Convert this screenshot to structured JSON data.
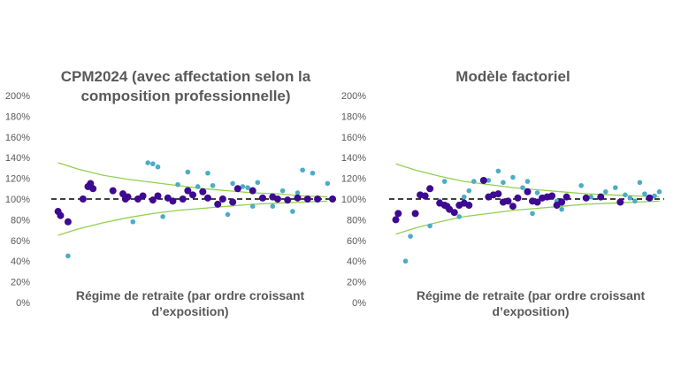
{
  "chart_data": [
    {
      "type": "scatter",
      "title": "CPM2024 (avec affectation selon la composition professionnelle)",
      "xlabel": "Régime de retraite (par ordre croissant d’exposition)",
      "ylabel": "",
      "xlim": [
        0,
        56
      ],
      "ylim": [
        0,
        2.0
      ],
      "yticks": [
        "0%",
        "20%",
        "40%",
        "60%",
        "80%",
        "100%",
        "120%",
        "140%",
        "160%",
        "180%",
        "200%"
      ],
      "reference_line": 1.0,
      "grid": false,
      "colors": {
        "series_a": "#4bacc6",
        "series_b": "#3d0a91",
        "bounds": "#92d050",
        "reference": "#000000"
      },
      "bounds": {
        "x": [
          1,
          5,
          10,
          15,
          20,
          25,
          30,
          35,
          40,
          45,
          50,
          55
        ],
        "upper": [
          1.35,
          1.29,
          1.23,
          1.19,
          1.16,
          1.13,
          1.1,
          1.08,
          1.06,
          1.05,
          1.03,
          1.02
        ],
        "lower": [
          0.65,
          0.71,
          0.77,
          0.82,
          0.86,
          0.89,
          0.91,
          0.93,
          0.95,
          0.96,
          0.97,
          0.98
        ]
      },
      "series": [
        {
          "x": [
            3,
            16,
            19,
            20,
            21,
            22,
            25,
            27,
            29,
            31,
            32,
            35,
            36,
            38,
            39,
            40,
            41,
            44,
            46,
            48,
            49,
            50,
            52,
            55
          ],
          "y": [
            0.45,
            0.78,
            1.35,
            1.34,
            1.31,
            0.83,
            1.14,
            1.26,
            1.12,
            1.25,
            1.13,
            0.85,
            1.15,
            1.12,
            1.11,
            0.93,
            1.16,
            0.93,
            1.08,
            0.88,
            1.06,
            1.28,
            1.25,
            1.15
          ]
        },
        {
          "x": [
            1,
            1.5,
            3,
            6,
            7,
            7.5,
            8,
            12,
            14,
            14.5,
            15,
            17,
            18,
            20,
            21,
            23,
            24,
            26,
            27,
            28,
            30,
            31,
            33,
            34,
            36,
            37,
            40,
            42,
            44,
            45,
            47,
            49,
            51,
            53,
            56
          ],
          "y": [
            0.88,
            0.84,
            0.78,
            1.0,
            1.12,
            1.15,
            1.1,
            1.08,
            1.05,
            1.0,
            1.02,
            1.0,
            1.03,
            0.99,
            1.03,
            1.01,
            0.98,
            1.0,
            1.08,
            1.04,
            1.07,
            1.01,
            0.95,
            1.0,
            0.97,
            1.1,
            1.08,
            1.01,
            1.02,
            1.0,
            0.99,
            1.01,
            1.0,
            1.0,
            1.0
          ]
        }
      ]
    },
    {
      "type": "scatter",
      "title": "Modèle factoriel",
      "xlabel": "Régime de retraite (par ordre croissant d’exposition)",
      "ylabel": "",
      "xlim": [
        0,
        56
      ],
      "ylim": [
        0,
        2.0
      ],
      "yticks": [
        "0%",
        "20%",
        "40%",
        "60%",
        "80%",
        "100%",
        "120%",
        "140%",
        "160%",
        "180%",
        "200%"
      ],
      "reference_line": 1.0,
      "grid": false,
      "colors": {
        "series_a": "#4bacc6",
        "series_b": "#3d0a91",
        "bounds": "#92d050",
        "reference": "#000000"
      },
      "bounds": {
        "x": [
          1,
          5,
          10,
          15,
          20,
          25,
          30,
          35,
          40,
          45,
          50,
          55
        ],
        "upper": [
          1.34,
          1.28,
          1.22,
          1.17,
          1.14,
          1.11,
          1.09,
          1.07,
          1.05,
          1.04,
          1.03,
          1.02
        ],
        "lower": [
          0.66,
          0.72,
          0.78,
          0.83,
          0.86,
          0.89,
          0.91,
          0.93,
          0.95,
          0.96,
          0.97,
          0.98
        ]
      },
      "series": [
        {
          "x": [
            3,
            4,
            8,
            10,
            11,
            14,
            15,
            16,
            17,
            20,
            22,
            23,
            25,
            27,
            28,
            29,
            30,
            33,
            34,
            35,
            39,
            41,
            44,
            46,
            48,
            49,
            50,
            51,
            52,
            54,
            55
          ],
          "y": [
            0.4,
            0.64,
            0.74,
            0.98,
            1.17,
            0.83,
            1.02,
            1.08,
            1.17,
            1.18,
            1.27,
            1.16,
            1.21,
            1.11,
            1.17,
            0.86,
            1.06,
            1.04,
            0.98,
            0.9,
            1.13,
            1.02,
            1.07,
            1.11,
            1.04,
            1.01,
            0.98,
            1.16,
            1.05,
            1.03,
            1.07
          ]
        },
        {
          "x": [
            1,
            1.5,
            5,
            6,
            7,
            8,
            10,
            11,
            11.5,
            12,
            13,
            14,
            15,
            16,
            19,
            20,
            21,
            22,
            23,
            24,
            25,
            26,
            28,
            29,
            30,
            31,
            32,
            33,
            34,
            35,
            36,
            40,
            43,
            47,
            53
          ],
          "y": [
            0.8,
            0.86,
            0.86,
            1.04,
            1.03,
            1.1,
            0.96,
            0.94,
            0.93,
            0.9,
            0.87,
            0.94,
            0.96,
            0.94,
            1.18,
            1.02,
            1.04,
            1.05,
            0.97,
            0.98,
            0.93,
            1.01,
            1.07,
            0.98,
            0.97,
            1.01,
            1.02,
            1.03,
            0.94,
            0.97,
            1.02,
            1.01,
            1.02,
            0.97,
            1.01
          ]
        }
      ]
    }
  ]
}
